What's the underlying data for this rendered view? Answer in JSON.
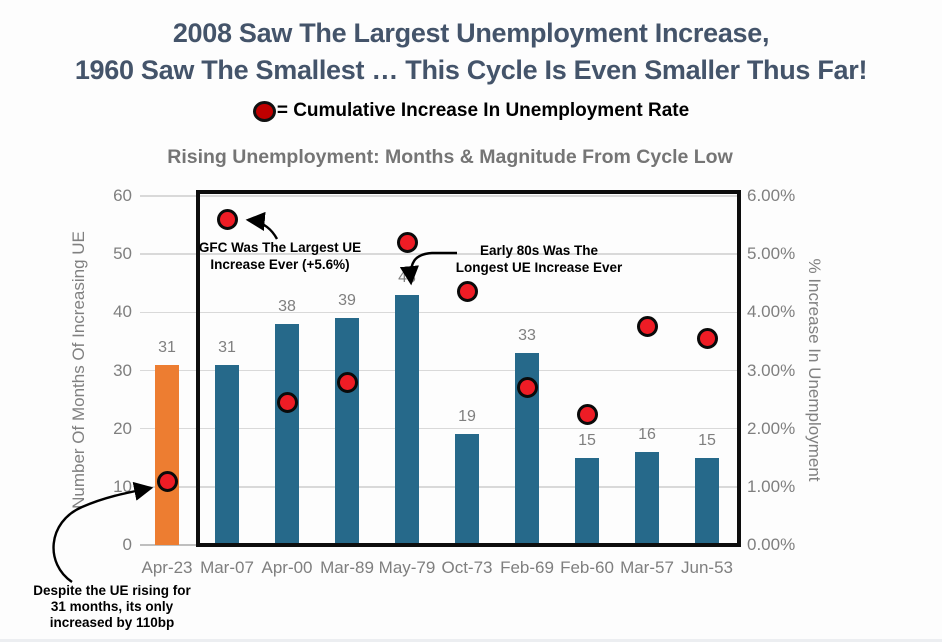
{
  "title": {
    "line1": "2008 Saw The Largest Unemployment Increase,",
    "line2": "1960 Saw The Smallest … This Cycle Is Even Smaller Thus Far!",
    "color": "#44546A"
  },
  "legend": {
    "marker_color": "#C00000",
    "marker_name": "red-circle-marker",
    "label": "= Cumulative Increase In Unemployment Rate"
  },
  "chart_data": {
    "type": "bar",
    "title": "Rising Unemployment: Months & Magnitude From Cycle Low",
    "categories": [
      "Apr-23",
      "Mar-07",
      "Apr-00",
      "Mar-89",
      "May-79",
      "Oct-73",
      "Feb-69",
      "Feb-60",
      "Mar-57",
      "Jun-53"
    ],
    "series": [
      {
        "name": "Number Of Months Of Increasing UE",
        "type": "bar",
        "axis": "left",
        "values": [
          31,
          31,
          38,
          39,
          43,
          19,
          33,
          15,
          16,
          15
        ]
      },
      {
        "name": "Cumulative Increase In Unemployment Rate",
        "type": "scatter",
        "axis": "right",
        "values_pct": [
          1.1,
          5.6,
          2.45,
          2.8,
          5.2,
          4.35,
          2.7,
          2.25,
          3.75,
          3.55
        ],
        "marker_color": "#EE1C25"
      }
    ],
    "left_axis": {
      "label": "Number Of Months Of Increasing UE",
      "ticks": [
        0,
        10,
        20,
        30,
        40,
        50,
        60
      ],
      "range": [
        0,
        60
      ]
    },
    "right_axis": {
      "label": "% Increase In Unemployment",
      "ticks": [
        "0.00%",
        "1.00%",
        "2.00%",
        "3.00%",
        "4.00%",
        "5.00%",
        "6.00%"
      ],
      "range": [
        0,
        6
      ]
    },
    "grid": true,
    "legend_position": "top",
    "bar_color": "#26698A",
    "highlight_bar_color": "#ED7D31",
    "highlight_index": 0,
    "gridline_color": "#D9D9D9"
  },
  "annotations": {
    "gfc": {
      "line1": "GFC Was The Largest UE",
      "line2": "Increase Ever (+5.6%)"
    },
    "early80s": {
      "line1": "Early 80s Was The",
      "line2": "Longest UE Increase Ever"
    },
    "despite": {
      "line1": "Despite the UE rising for",
      "line2": "31 months, its only",
      "line3": "increased by 110bp"
    }
  }
}
